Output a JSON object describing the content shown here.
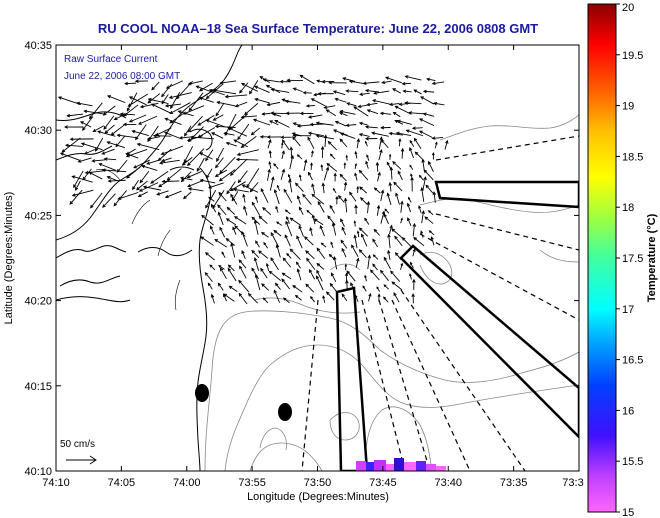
{
  "title": "RU COOL  NOAA–18  Sea Surface Temperature:  June 22, 2006 0808 GMT",
  "info_line1": "Raw Surface Current",
  "info_line2": "June 22, 2006 08:00 GMT",
  "scale_label": "50 cm/s",
  "xlabel": "Longitude (Degrees:Minutes)",
  "ylabel": "Latitude (Degrees:Minutes)",
  "x_ticks": [
    "74:10",
    "74:05",
    "74:00",
    "73:55",
    "73:50",
    "73:45",
    "73:40",
    "73:35",
    "73:3"
  ],
  "y_ticks": [
    "40:35",
    "40:30",
    "40:25",
    "40:20",
    "40:15",
    "40:10"
  ],
  "colorbar": {
    "label": "Temperature (°C)",
    "ticks": [
      "20",
      "19.5",
      "19",
      "18.5",
      "18",
      "17.5",
      "17",
      "16.5",
      "16",
      "15.5",
      "15"
    ],
    "range": [
      15,
      20
    ]
  },
  "colors": {
    "title": "#1a1aa0",
    "coast": "#000000",
    "bathymetry": "#888888",
    "vectors": "#000000"
  }
}
